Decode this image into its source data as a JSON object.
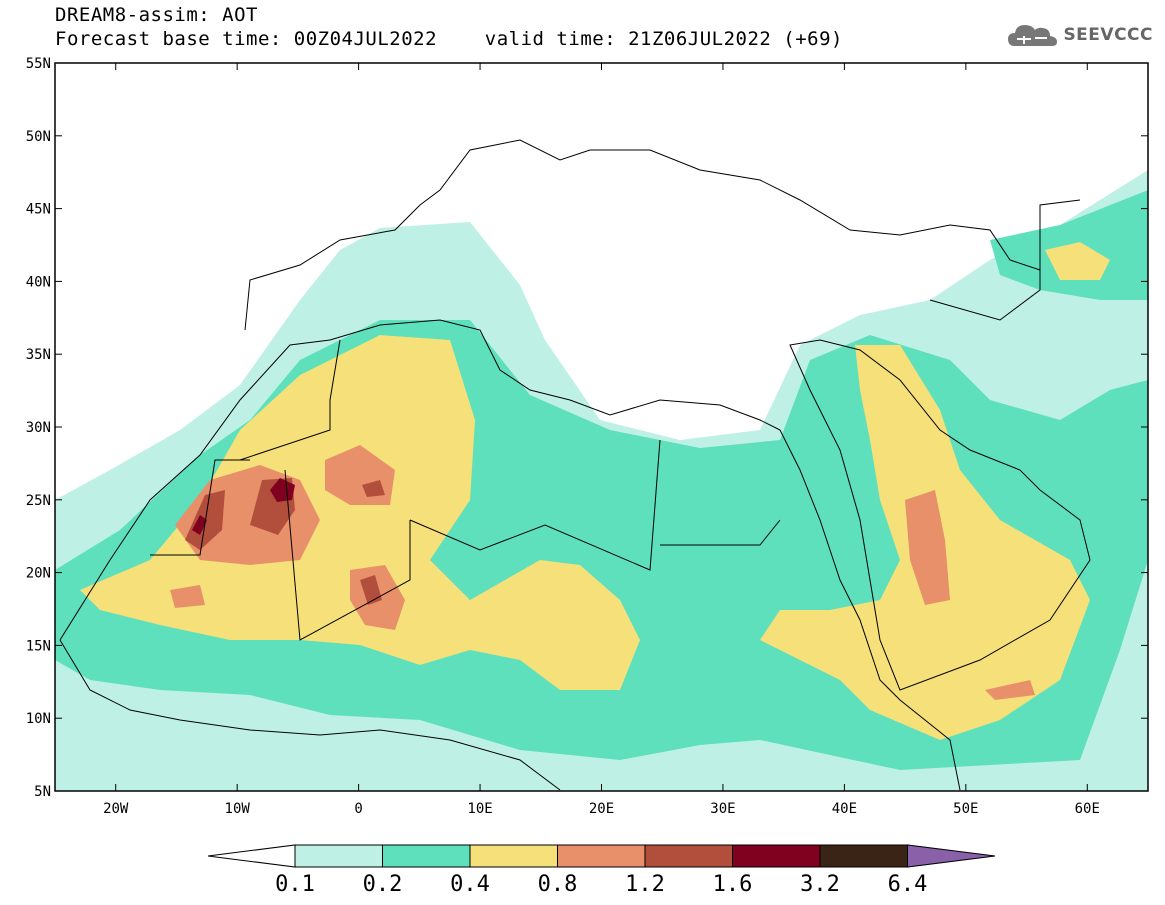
{
  "header": {
    "line1": "DREAM8-assim: AOT",
    "line2": "Forecast base time: 00Z04JUL2022    valid time: 21Z06JUL2022 (+69)",
    "logo_text": "SEEVCCC",
    "logo_icon": "cloud-icon"
  },
  "map": {
    "lon_range": [
      -25,
      65
    ],
    "lat_range": [
      5,
      55
    ],
    "lat_ticks": [
      "55N",
      "50N",
      "45N",
      "40N",
      "35N",
      "30N",
      "25N",
      "20N",
      "15N",
      "10N",
      "5N"
    ],
    "lon_ticks": [
      "20W",
      "10W",
      "0",
      "10E",
      "20E",
      "30E",
      "40E",
      "50E",
      "60E"
    ]
  },
  "colorbar": {
    "levels": [
      "0.1",
      "0.2",
      "0.4",
      "0.8",
      "1.2",
      "1.6",
      "3.2",
      "6.4"
    ],
    "colors": [
      "#ffffff",
      "#bff0e6",
      "#5ee0bc",
      "#f5e07a",
      "#e8906a",
      "#b24e3c",
      "#800020",
      "#3a2415",
      "#8a60a8"
    ]
  }
}
